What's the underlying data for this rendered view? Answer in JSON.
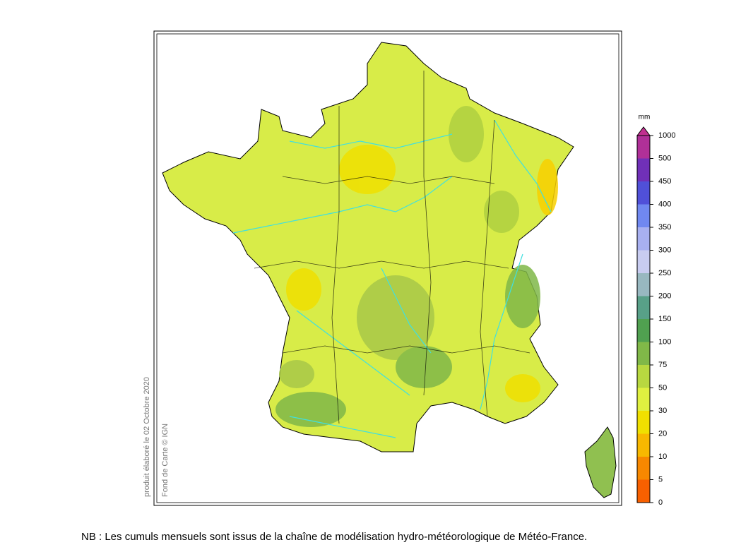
{
  "legend": {
    "unit": "mm",
    "labels": [
      1000,
      500,
      450,
      400,
      350,
      300,
      250,
      200,
      150,
      100,
      75,
      50,
      30,
      20,
      10,
      5,
      0
    ],
    "colors": [
      "#b03098",
      "#7030b8",
      "#5050d8",
      "#7088f0",
      "#a8b0f0",
      "#c8ccf0",
      "#98b8c0",
      "#58a088",
      "#50a050",
      "#80b848",
      "#b8d840",
      "#e0f040",
      "#f0e000",
      "#f8b800",
      "#f88800",
      "#f86000"
    ],
    "overflow_color": "#c03090"
  },
  "side_notes": [
    "produit élaboré le 02 Octobre 2020",
    "Fond de Carte © IGN"
  ],
  "footnote": "NB : Les cumuls mensuels sont issus de la chaîne de modélisation hydro-météorologique de Météo-France."
}
